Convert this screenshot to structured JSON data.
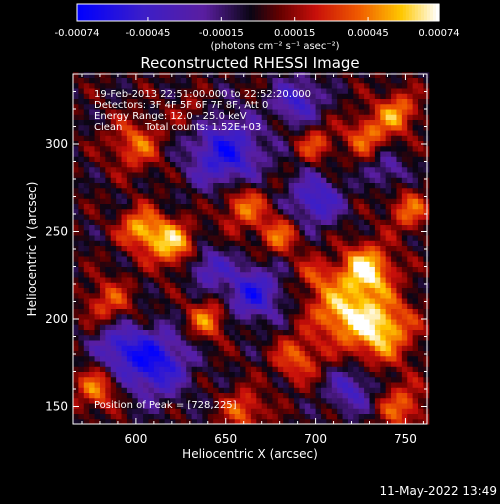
{
  "chart_data": {
    "type": "heatmap",
    "title": "Reconstructed RHESSI Image",
    "xlabel": "Heliocentric X (arcsec)",
    "ylabel": "Heliocentric Y (arcsec)",
    "xlim": [
      565,
      762
    ],
    "ylim": [
      140,
      340
    ],
    "x_ticks": [
      600,
      650,
      700,
      750
    ],
    "y_ticks": [
      150,
      200,
      250,
      300
    ],
    "colorbar": {
      "range": [
        -0.00074,
        0.00074
      ],
      "ticks": [
        -0.00074,
        -0.00045,
        -0.00015,
        0.00015,
        0.00045,
        0.00074
      ],
      "tick_labels": [
        "-0.00074",
        "-0.00045",
        "-0.00015",
        "0.00015",
        "0.00045",
        "0.00074"
      ],
      "units_label": "(photons cm⁻² s⁻¹ asec⁻²)"
    },
    "annotations": {
      "time": "19-Feb-2013 22:51:00.000 to 22:52:20.000",
      "detectors": "Detectors: 3F 4F 5F 6F 7F 8F, Att 0",
      "energy": "Energy Range: 12.0 - 25.0 keV",
      "method": "Clean",
      "counts": "Total counts: 1.52E+03",
      "peak": "Position of Peak = [728,225]"
    },
    "peak": {
      "x": 728,
      "y": 225
    },
    "blobs": [
      {
        "x": 728,
        "y": 228,
        "a": 0.00072,
        "s": 10
      },
      {
        "x": 735,
        "y": 195,
        "a": 0.00068,
        "s": 13
      },
      {
        "x": 712,
        "y": 205,
        "a": 0.0005,
        "s": 11
      },
      {
        "x": 620,
        "y": 243,
        "a": 0.0006,
        "s": 9
      },
      {
        "x": 603,
        "y": 252,
        "a": 0.00055,
        "s": 8
      },
      {
        "x": 660,
        "y": 265,
        "a": 0.00045,
        "s": 9
      },
      {
        "x": 680,
        "y": 248,
        "a": 0.0004,
        "s": 8
      },
      {
        "x": 745,
        "y": 318,
        "a": 0.0005,
        "s": 8
      },
      {
        "x": 728,
        "y": 305,
        "a": 0.00042,
        "s": 8
      },
      {
        "x": 700,
        "y": 300,
        "a": 0.00035,
        "s": 7
      },
      {
        "x": 752,
        "y": 262,
        "a": 0.0004,
        "s": 8
      },
      {
        "x": 585,
        "y": 210,
        "a": 0.00035,
        "s": 9
      },
      {
        "x": 600,
        "y": 300,
        "a": 0.0004,
        "s": 10
      },
      {
        "x": 578,
        "y": 160,
        "a": 0.00045,
        "s": 8
      },
      {
        "x": 640,
        "y": 200,
        "a": 0.00045,
        "s": 8
      },
      {
        "x": 690,
        "y": 178,
        "a": 0.0004,
        "s": 9
      },
      {
        "x": 660,
        "y": 148,
        "a": 0.0004,
        "s": 8
      },
      {
        "x": 748,
        "y": 150,
        "a": 0.0004,
        "s": 9
      },
      {
        "x": 700,
        "y": 225,
        "a": 0.0003,
        "s": 7
      },
      {
        "x": 630,
        "y": 318,
        "a": 0.0002,
        "s": 7
      },
      {
        "x": 650,
        "y": 295,
        "a": -0.0006,
        "s": 14
      },
      {
        "x": 610,
        "y": 175,
        "a": -0.00065,
        "s": 13
      },
      {
        "x": 665,
        "y": 215,
        "a": -0.00055,
        "s": 11
      },
      {
        "x": 700,
        "y": 268,
        "a": -0.0005,
        "s": 10
      },
      {
        "x": 590,
        "y": 185,
        "a": -0.0004,
        "s": 9
      },
      {
        "x": 640,
        "y": 230,
        "a": -0.0004,
        "s": 8
      },
      {
        "x": 720,
        "y": 160,
        "a": -0.0004,
        "s": 9
      },
      {
        "x": 690,
        "y": 325,
        "a": -0.00045,
        "s": 9
      },
      {
        "x": 740,
        "y": 285,
        "a": -0.0003,
        "s": 7
      }
    ]
  },
  "footer": {
    "timestamp": "11-May-2022 13:49"
  }
}
